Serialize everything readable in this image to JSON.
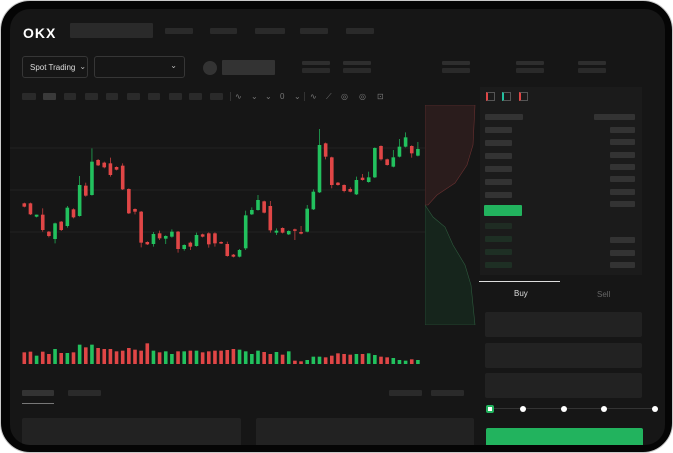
{
  "brand": "OKX",
  "market_select": {
    "label": "Spot Trading"
  },
  "order_tabs": {
    "buy": "Buy",
    "sell": "Sell"
  },
  "colors": {
    "up": "#22c15e",
    "down": "#e04646",
    "accent": "#22b35e",
    "bg": "#161616"
  },
  "icons": [
    "menu-icon",
    "chevron-down-icon",
    "indicator-icon",
    "line-draw-icon",
    "pencil-icon",
    "settings-icon",
    "screenshot-icon",
    "orderbook-both-icon",
    "orderbook-bids-icon",
    "orderbook-asks-icon"
  ],
  "leverage_slider": {
    "value_percent": 0
  },
  "chart_data": {
    "type": "candlestick",
    "candles": [
      [
        185,
        187,
        173,
        175
      ],
      [
        185,
        187,
        150,
        152
      ],
      [
        145,
        151,
        143,
        151
      ],
      [
        151,
        170,
        100,
        105
      ],
      [
        100,
        102,
        83,
        87
      ],
      [
        78,
        127,
        65,
        125
      ],
      [
        130,
        132,
        102,
        105
      ],
      [
        117,
        177,
        112,
        172
      ],
      [
        167,
        170,
        140,
        143
      ],
      [
        147,
        267,
        145,
        240
      ],
      [
        238,
        247,
        205,
        208
      ],
      [
        210,
        350,
        208,
        310
      ],
      [
        315,
        318,
        297,
        299
      ],
      [
        307,
        310,
        290,
        293
      ],
      [
        305,
        322,
        265,
        270
      ],
      [
        294,
        296,
        284,
        286
      ],
      [
        298,
        305,
        225,
        227
      ],
      [
        228,
        230,
        153,
        155
      ],
      [
        168,
        170,
        152,
        160
      ],
      [
        160,
        162,
        53,
        67
      ],
      [
        69,
        71,
        60,
        62
      ],
      [
        63,
        99,
        55,
        93
      ],
      [
        95,
        103,
        75,
        80
      ],
      [
        79,
        89,
        63,
        87
      ],
      [
        85,
        107,
        82,
        100
      ],
      [
        100,
        102,
        37,
        48
      ],
      [
        48,
        62,
        43,
        60
      ],
      [
        67,
        70,
        45,
        55
      ],
      [
        57,
        97,
        55,
        90
      ],
      [
        92,
        94,
        83,
        85
      ],
      [
        95,
        98,
        52,
        62
      ],
      [
        95,
        98,
        55,
        65
      ],
      [
        69,
        71,
        63,
        65
      ],
      [
        63,
        70,
        25,
        27
      ],
      [
        31,
        33,
        23,
        25
      ],
      [
        25,
        48,
        23,
        45
      ],
      [
        50,
        163,
        45,
        149
      ],
      [
        152,
        173,
        150,
        165
      ],
      [
        165,
        210,
        163,
        195
      ],
      [
        191,
        193,
        155,
        157
      ],
      [
        177,
        192,
        97,
        104
      ],
      [
        97,
        110,
        90,
        103
      ],
      [
        111,
        113,
        95,
        97
      ],
      [
        92,
        104,
        90,
        102
      ],
      [
        107,
        109,
        75,
        103
      ],
      [
        99,
        117,
        92,
        94
      ],
      [
        100,
        180,
        98,
        169
      ],
      [
        167,
        227,
        165,
        220
      ],
      [
        218,
        408,
        216,
        360
      ],
      [
        365,
        367,
        317,
        325
      ],
      [
        323,
        325,
        230,
        240
      ],
      [
        247,
        249,
        238,
        240
      ],
      [
        240,
        242,
        218,
        222
      ],
      [
        228,
        233,
        218,
        220
      ],
      [
        212,
        265,
        210,
        255
      ],
      [
        262,
        273,
        253,
        255
      ],
      [
        249,
        280,
        247,
        263
      ],
      [
        263,
        353,
        261,
        351
      ],
      [
        357,
        359,
        313,
        317
      ],
      [
        317,
        319,
        298,
        300
      ],
      [
        295,
        345,
        293,
        323
      ],
      [
        325,
        378,
        323,
        355
      ],
      [
        355,
        398,
        353,
        383
      ],
      [
        357,
        359,
        322,
        335
      ],
      [
        328,
        369,
        326,
        348
      ]
    ],
    "volume": [
      35,
      37,
      25,
      37,
      30,
      45,
      33,
      33,
      35,
      58,
      50,
      58,
      48,
      45,
      45,
      38,
      40,
      48,
      43,
      40,
      62,
      40,
      35,
      38,
      30,
      38,
      38,
      40,
      40,
      35,
      38,
      40,
      40,
      42,
      45,
      43,
      38,
      30,
      40,
      36,
      30,
      36,
      28,
      38,
      10,
      8,
      12,
      22,
      22,
      20,
      25,
      32,
      30,
      28,
      30,
      30,
      32,
      27,
      22,
      20,
      18,
      12,
      10,
      14,
      12
    ]
  }
}
